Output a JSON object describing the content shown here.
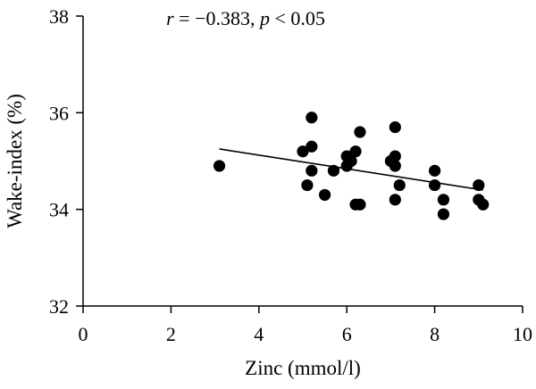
{
  "chart_data": {
    "type": "scatter",
    "xlabel": "Zinc (mmol/l)",
    "ylabel": "Wake-index (%)",
    "xlim": [
      0,
      10
    ],
    "ylim": [
      32,
      38
    ],
    "xticks": [
      "0",
      "2",
      "4",
      "6",
      "8",
      "10"
    ],
    "yticks": [
      "32",
      "34",
      "36",
      "38"
    ],
    "grid": false,
    "annotation": {
      "r_symbol": "r",
      "r_text": " = −0.383, ",
      "p_symbol": "p",
      "p_text": " < 0.05"
    },
    "points": [
      {
        "x": 3.1,
        "y": 34.9
      },
      {
        "x": 5.0,
        "y": 35.2
      },
      {
        "x": 5.1,
        "y": 34.5
      },
      {
        "x": 5.2,
        "y": 35.9
      },
      {
        "x": 5.2,
        "y": 35.3
      },
      {
        "x": 5.2,
        "y": 34.8
      },
      {
        "x": 5.5,
        "y": 34.3
      },
      {
        "x": 5.7,
        "y": 34.8
      },
      {
        "x": 6.0,
        "y": 34.9
      },
      {
        "x": 6.0,
        "y": 35.1
      },
      {
        "x": 6.1,
        "y": 35.0
      },
      {
        "x": 6.2,
        "y": 35.2
      },
      {
        "x": 6.2,
        "y": 34.1
      },
      {
        "x": 6.3,
        "y": 34.1
      },
      {
        "x": 6.3,
        "y": 35.6
      },
      {
        "x": 7.0,
        "y": 35.0
      },
      {
        "x": 7.1,
        "y": 35.7
      },
      {
        "x": 7.1,
        "y": 35.1
      },
      {
        "x": 7.1,
        "y": 34.9
      },
      {
        "x": 7.1,
        "y": 34.2
      },
      {
        "x": 7.2,
        "y": 34.5
      },
      {
        "x": 8.0,
        "y": 34.8
      },
      {
        "x": 8.0,
        "y": 34.5
      },
      {
        "x": 8.2,
        "y": 34.2
      },
      {
        "x": 8.2,
        "y": 33.9
      },
      {
        "x": 9.0,
        "y": 34.5
      },
      {
        "x": 9.0,
        "y": 34.2
      },
      {
        "x": 9.1,
        "y": 34.1
      }
    ],
    "regression_line": {
      "x": [
        3.1,
        9.1
      ],
      "y": [
        35.25,
        34.4
      ]
    }
  }
}
